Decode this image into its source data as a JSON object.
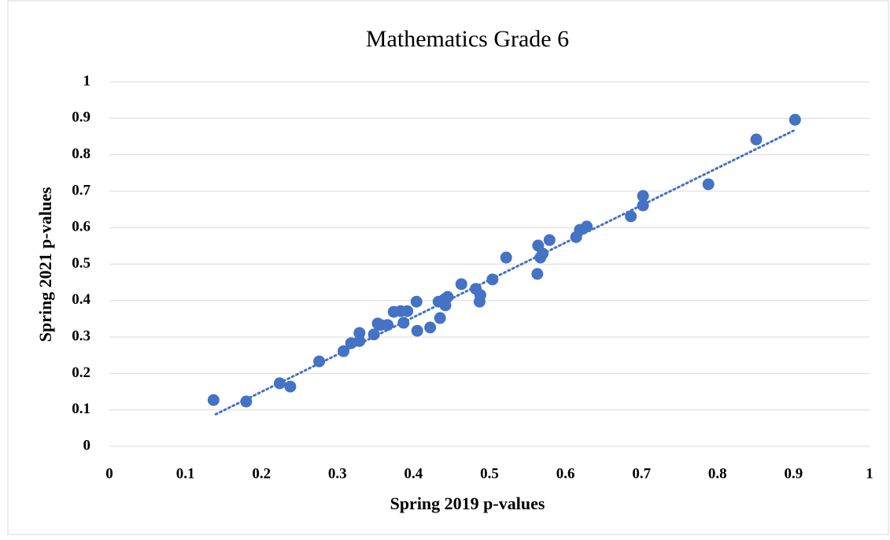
{
  "chart_data": {
    "type": "scatter",
    "title": "Mathematics Grade 6",
    "xlabel": "Spring 2019 p-values",
    "ylabel": "Spring 2021 p-values",
    "xlim": [
      0,
      1
    ],
    "ylim": [
      0,
      1
    ],
    "xticks": [
      0,
      0.1,
      0.2,
      0.3,
      0.4,
      0.5,
      0.6,
      0.7,
      0.8,
      0.9,
      1
    ],
    "yticks": [
      0,
      0.1,
      0.2,
      0.3,
      0.4,
      0.5,
      0.6,
      0.7,
      0.8,
      0.9,
      1
    ],
    "grid": true,
    "color": "#4472c4",
    "x": [
      0.137,
      0.18,
      0.224,
      0.238,
      0.276,
      0.308,
      0.318,
      0.329,
      0.329,
      0.348,
      0.353,
      0.357,
      0.366,
      0.374,
      0.383,
      0.392,
      0.387,
      0.404,
      0.405,
      0.422,
      0.435,
      0.433,
      0.441,
      0.445,
      0.442,
      0.463,
      0.482,
      0.488,
      0.487,
      0.504,
      0.522,
      0.563,
      0.564,
      0.567,
      0.57,
      0.579,
      0.614,
      0.619,
      0.628,
      0.686,
      0.702,
      0.702,
      0.788,
      0.851,
      0.902
    ],
    "values": [
      0.127,
      0.123,
      0.173,
      0.164,
      0.233,
      0.261,
      0.283,
      0.311,
      0.289,
      0.307,
      0.337,
      0.333,
      0.333,
      0.369,
      0.371,
      0.371,
      0.339,
      0.397,
      0.317,
      0.326,
      0.352,
      0.397,
      0.404,
      0.41,
      0.387,
      0.445,
      0.432,
      0.415,
      0.397,
      0.458,
      0.518,
      0.473,
      0.551,
      0.518,
      0.529,
      0.566,
      0.574,
      0.594,
      0.603,
      0.631,
      0.687,
      0.661,
      0.719,
      0.842,
      0.896
    ],
    "trendline": {
      "x": [
        0.14,
        0.9
      ],
      "values": [
        0.088,
        0.866
      ]
    }
  }
}
